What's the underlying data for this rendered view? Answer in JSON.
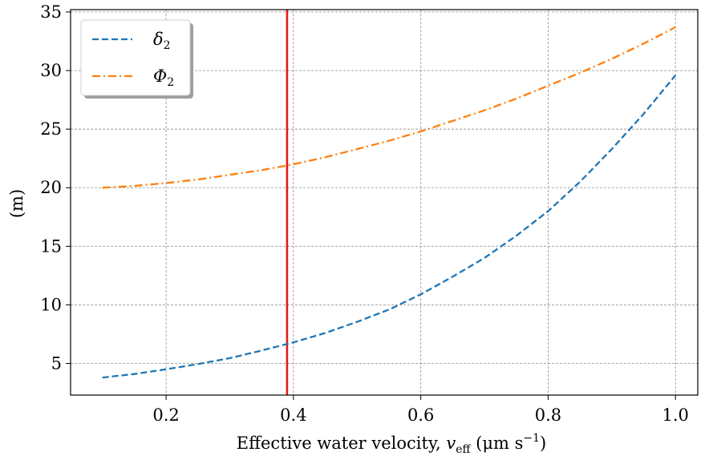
{
  "chart_data": {
    "type": "line",
    "xlabel": "Effective water velocity, ",
    "xlabel_var": "v",
    "xlabel_var_sub": "eff",
    "xlabel_units": " (μm s",
    "xlabel_units_sup": "−1",
    "xlabel_units_close": ")",
    "ylabel": "(m)",
    "xlim": [
      0.05,
      1.035
    ],
    "ylim": [
      2.3,
      35.2
    ],
    "xticks": [
      0.2,
      0.4,
      0.6,
      0.8,
      1.0
    ],
    "xtick_labels": [
      "0.2",
      "0.4",
      "0.6",
      "0.8",
      "1.0"
    ],
    "yticks": [
      5,
      10,
      15,
      20,
      25,
      30,
      35
    ],
    "ytick_labels": [
      "5",
      "10",
      "15",
      "20",
      "25",
      "30",
      "35"
    ],
    "grid": true,
    "legend_position": "top-left",
    "vline": {
      "x": 0.39,
      "color": "#e41a1c"
    },
    "series": [
      {
        "name": "δ",
        "name_sub": "2",
        "color": "#1f77b4",
        "dash": "dashed",
        "x": [
          0.1,
          0.15,
          0.2,
          0.25,
          0.3,
          0.35,
          0.4,
          0.45,
          0.5,
          0.55,
          0.6,
          0.65,
          0.7,
          0.75,
          0.8,
          0.85,
          0.9,
          0.95,
          1.0
        ],
        "values": [
          3.8,
          4.1,
          4.5,
          4.95,
          5.45,
          6.1,
          6.8,
          7.6,
          8.55,
          9.6,
          10.9,
          12.4,
          14.0,
          15.9,
          18.0,
          20.5,
          23.3,
          26.3,
          29.6
        ]
      },
      {
        "name": "Φ",
        "name_sub": "2",
        "color": "#ff7f0e",
        "dash": "dashdot",
        "x": [
          0.1,
          0.15,
          0.2,
          0.25,
          0.3,
          0.35,
          0.4,
          0.45,
          0.5,
          0.55,
          0.6,
          0.65,
          0.7,
          0.75,
          0.8,
          0.85,
          0.9,
          0.95,
          1.0
        ],
        "values": [
          20.0,
          20.15,
          20.4,
          20.7,
          21.1,
          21.5,
          22.0,
          22.6,
          23.3,
          24.0,
          24.8,
          25.7,
          26.6,
          27.6,
          28.7,
          29.8,
          31.0,
          32.3,
          33.7
        ]
      }
    ]
  }
}
